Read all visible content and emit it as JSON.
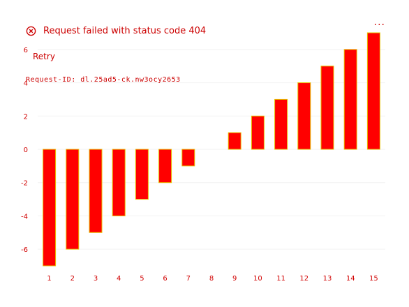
{
  "error": {
    "title": "Request failed with status code 404",
    "retry_label": "Retry",
    "request_id": "Request-ID: dl.25ad5-ck.nw3ocy2653",
    "more_label": "..."
  },
  "colors": {
    "bar": "#ff0000",
    "text": "#cc0000"
  },
  "chart_data": {
    "type": "bar",
    "categories": [
      "1",
      "2",
      "3",
      "4",
      "5",
      "6",
      "7",
      "8",
      "9",
      "10",
      "11",
      "12",
      "13",
      "14",
      "15"
    ],
    "values": [
      -7,
      -6,
      -5,
      -4,
      -3,
      -2,
      -1,
      0,
      1,
      2,
      3,
      4,
      5,
      6,
      7
    ],
    "yticks": [
      -6,
      -4,
      -2,
      0,
      2,
      4,
      6
    ],
    "ylim": [
      -7,
      7
    ],
    "title": "",
    "xlabel": "",
    "ylabel": "",
    "grid": true,
    "legend": "none"
  }
}
